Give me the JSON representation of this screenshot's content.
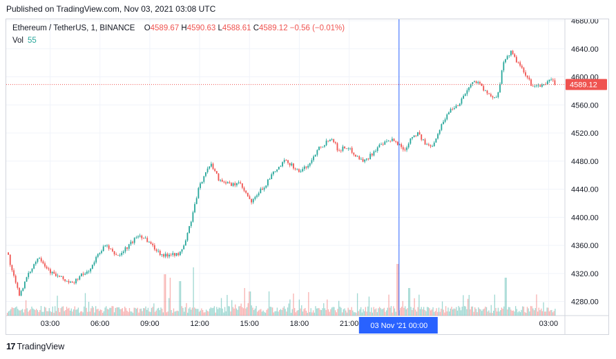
{
  "published": "Published on TradingView.com, Nov 03, 2021 03:08 UTC",
  "legend": {
    "symbol": "Ethereum / TetherUS, 1, BINANCE",
    "o_label": "O",
    "o_value": "4589.67",
    "h_label": "H",
    "h_value": "4590.63",
    "l_label": "L",
    "l_value": "4588.61",
    "c_label": "C",
    "c_value": "4589.12",
    "change": "−0.56 (−0.01%)"
  },
  "volume": {
    "label": "Vol",
    "value": "55"
  },
  "price_tag": "4589.12",
  "crosshair_label": "03 Nov '21   00:00",
  "footer": {
    "logo": "17",
    "brand": "TradingView"
  },
  "colors": {
    "up": "#26a69a",
    "down": "#ef5350",
    "crosshair": "#2962ff",
    "grid": "#f0f3fa"
  },
  "chart_data": {
    "type": "candlestick",
    "symbol": "Ethereum / TetherUS",
    "interval": "1",
    "exchange": "BINANCE",
    "y_ticks": [
      4280,
      4320,
      4360,
      4400,
      4440,
      4480,
      4520,
      4560,
      4600,
      4640,
      4680
    ],
    "x_tick_labels": [
      "03:00",
      "06:00",
      "09:00",
      "12:00",
      "15:00",
      "18:00",
      "21:00",
      "03:00"
    ],
    "ylim": [
      4260,
      4680
    ],
    "last_price": 4589.12,
    "crosshair_x_label": "03 Nov '21   00:00",
    "series": [
      {
        "name": "price",
        "values": [
          [
            0.0,
            4350
          ],
          [
            0.3,
            4320
          ],
          [
            0.7,
            4290
          ],
          [
            1.1,
            4310
          ],
          [
            1.5,
            4330
          ],
          [
            1.9,
            4345
          ],
          [
            2.3,
            4330
          ],
          [
            2.7,
            4320
          ],
          [
            3.1,
            4315
          ],
          [
            3.5,
            4310
          ],
          [
            3.9,
            4305
          ],
          [
            4.3,
            4315
          ],
          [
            4.7,
            4320
          ],
          [
            5.1,
            4330
          ],
          [
            5.5,
            4350
          ],
          [
            5.9,
            4360
          ],
          [
            6.3,
            4350
          ],
          [
            6.7,
            4345
          ],
          [
            7.1,
            4355
          ],
          [
            7.5,
            4365
          ],
          [
            7.9,
            4375
          ],
          [
            8.3,
            4370
          ],
          [
            8.7,
            4360
          ],
          [
            9.1,
            4350
          ],
          [
            9.5,
            4345
          ],
          [
            9.9,
            4350
          ],
          [
            10.3,
            4345
          ],
          [
            10.7,
            4365
          ],
          [
            11.1,
            4400
          ],
          [
            11.5,
            4440
          ],
          [
            11.9,
            4465
          ],
          [
            12.3,
            4475
          ],
          [
            12.7,
            4455
          ],
          [
            13.1,
            4450
          ],
          [
            13.5,
            4445
          ],
          [
            13.9,
            4450
          ],
          [
            14.3,
            4435
          ],
          [
            14.7,
            4420
          ],
          [
            15.1,
            4435
          ],
          [
            15.5,
            4445
          ],
          [
            15.9,
            4460
          ],
          [
            16.3,
            4470
          ],
          [
            16.7,
            4480
          ],
          [
            17.1,
            4475
          ],
          [
            17.5,
            4465
          ],
          [
            17.9,
            4470
          ],
          [
            18.3,
            4480
          ],
          [
            18.7,
            4500
          ],
          [
            19.1,
            4505
          ],
          [
            19.5,
            4515
          ],
          [
            19.9,
            4495
          ],
          [
            20.3,
            4500
          ],
          [
            20.7,
            4495
          ],
          [
            21.1,
            4485
          ],
          [
            21.5,
            4480
          ],
          [
            21.9,
            4490
          ],
          [
            22.3,
            4500
          ],
          [
            22.7,
            4505
          ],
          [
            23.1,
            4510
          ],
          [
            23.5,
            4505
          ],
          [
            23.9,
            4495
          ],
          [
            24.3,
            4515
          ],
          [
            24.7,
            4520
          ],
          [
            25.1,
            4505
          ],
          [
            25.5,
            4500
          ],
          [
            25.9,
            4520
          ],
          [
            26.3,
            4540
          ],
          [
            26.7,
            4555
          ],
          [
            27.1,
            4560
          ],
          [
            27.5,
            4575
          ],
          [
            27.9,
            4590
          ],
          [
            28.3,
            4595
          ],
          [
            28.7,
            4580
          ],
          [
            29.1,
            4570
          ],
          [
            29.5,
            4575
          ],
          [
            29.9,
            4625
          ],
          [
            30.3,
            4635
          ],
          [
            30.7,
            4620
          ],
          [
            31.1,
            4605
          ],
          [
            31.5,
            4590
          ],
          [
            31.9,
            4585
          ],
          [
            32.3,
            4590
          ],
          [
            32.7,
            4595
          ],
          [
            33.0,
            4589
          ]
        ]
      }
    ],
    "volume_note": "volume histogram bars along bottom, spikes near 09:00-10:00, 14:00, 23:30, 01:00"
  }
}
